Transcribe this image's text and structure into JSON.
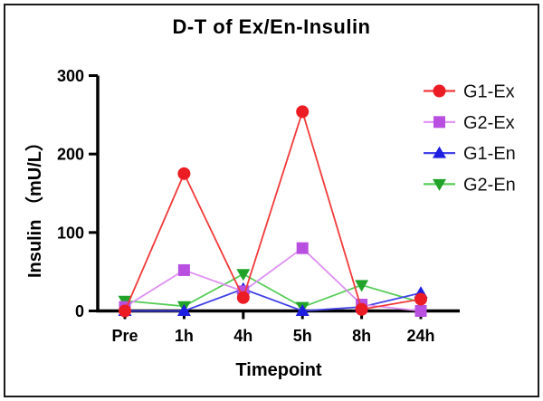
{
  "chart_data": {
    "type": "line",
    "title": "D-T of Ex/En-Insulin",
    "xlabel": "Timepoint",
    "ylabel": "Insulin （mU/L）",
    "categories": [
      "Pre",
      "1h",
      "4h",
      "5h",
      "8h",
      "24h"
    ],
    "yticks": [
      0,
      100,
      200,
      300
    ],
    "ylim": [
      0,
      300
    ],
    "grid": false,
    "legend_position": "right",
    "axis_color": "#000000",
    "series": [
      {
        "name": "G1-Ex",
        "marker": "circle",
        "marker_color": "#ec1c24",
        "line_color": "#f23a3a",
        "values": [
          0,
          175,
          17,
          254,
          2,
          15
        ]
      },
      {
        "name": "G2-Ex",
        "marker": "square",
        "marker_color": "#b94fe0",
        "line_color": "#de8ff2",
        "values": [
          5,
          52,
          25,
          80,
          8,
          0
        ]
      },
      {
        "name": "G1-En",
        "marker": "triangle-up",
        "marker_color": "#1e1ee0",
        "line_color": "#4343e8",
        "values": [
          0,
          0,
          28,
          0,
          5,
          23
        ]
      },
      {
        "name": "G2-En",
        "marker": "triangle-down",
        "marker_color": "#21a32a",
        "line_color": "#57cd57",
        "values": [
          13,
          6,
          47,
          5,
          33,
          11
        ]
      }
    ]
  }
}
